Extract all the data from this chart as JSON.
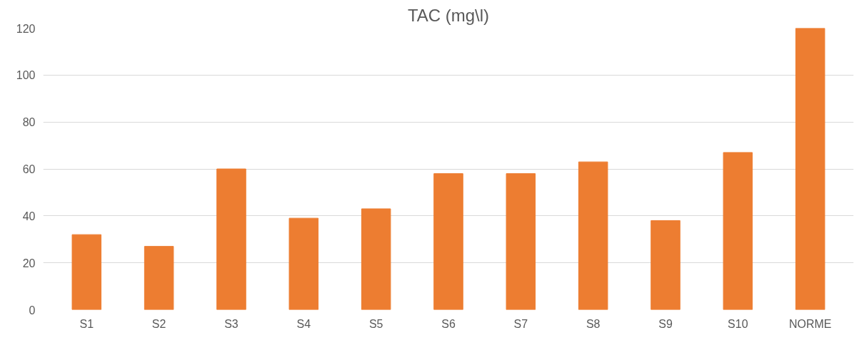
{
  "chart_data": {
    "type": "bar",
    "title": "TAC (mg\\l)",
    "categories": [
      "S1",
      "S2",
      "S3",
      "S4",
      "S5",
      "S6",
      "S7",
      "S8",
      "S9",
      "S10",
      "NORME"
    ],
    "values": [
      32,
      27,
      60,
      39,
      43,
      58,
      58,
      63,
      38,
      67,
      120
    ],
    "color": "#ed7d31",
    "ylim": [
      0,
      120
    ],
    "yticks": [
      0,
      20,
      40,
      60,
      80,
      100,
      120
    ],
    "grid": "y"
  }
}
